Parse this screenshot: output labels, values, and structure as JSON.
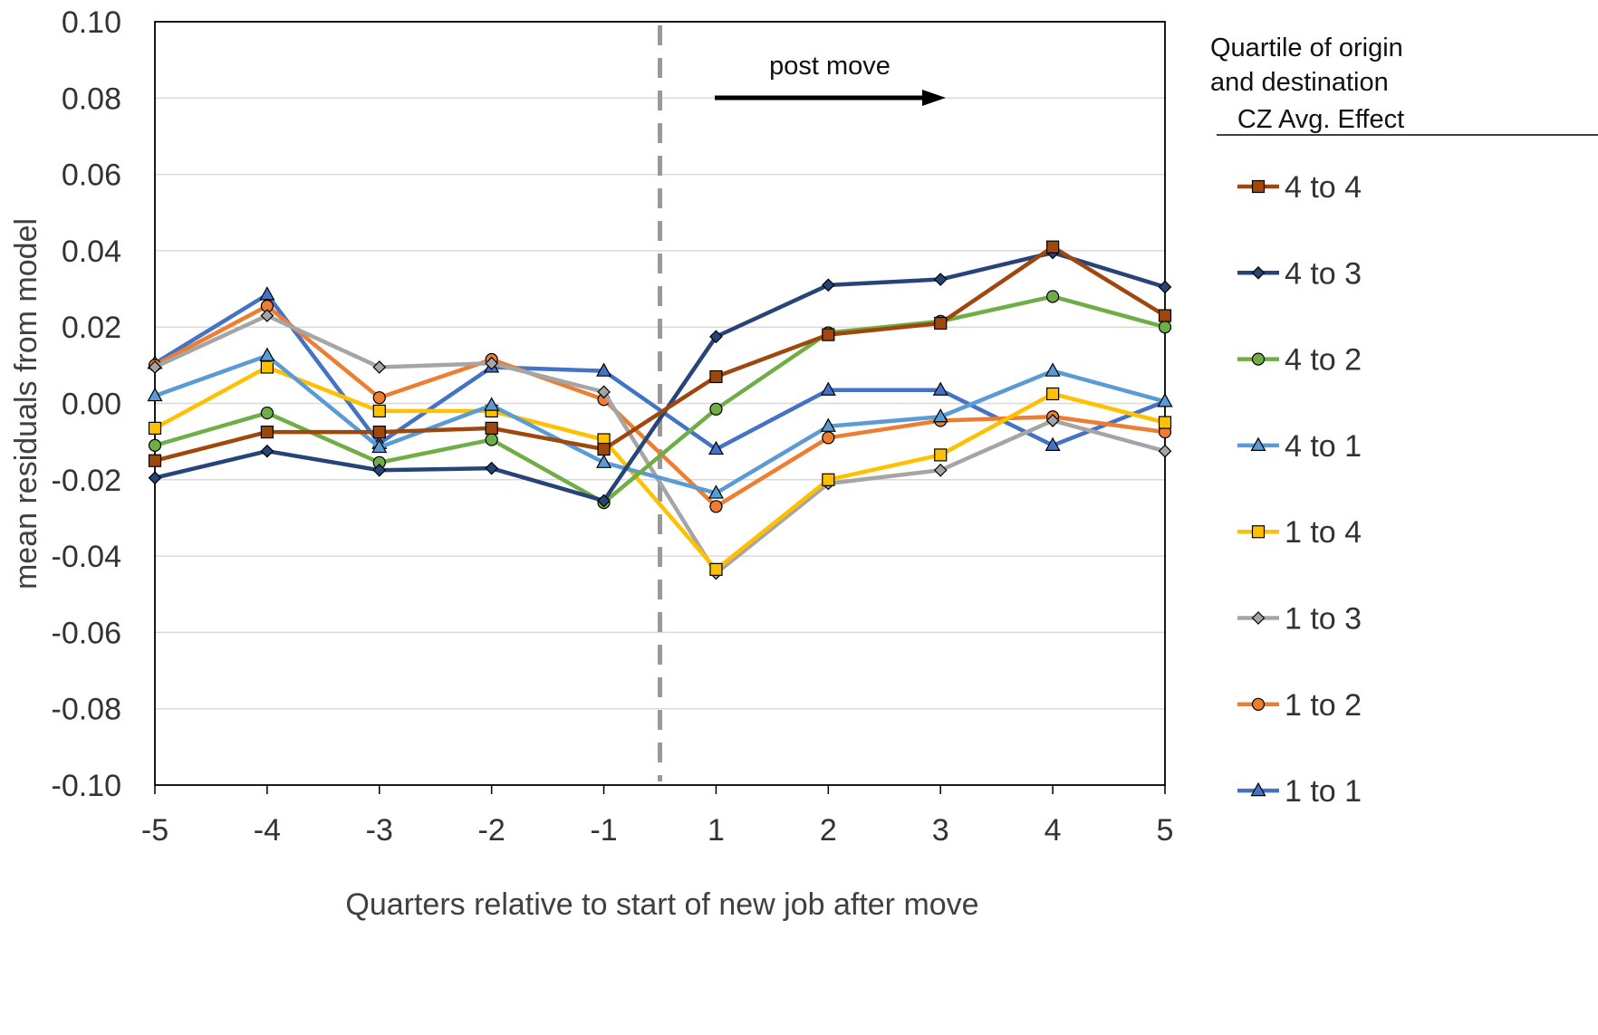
{
  "chart_data": {
    "type": "line",
    "xlabel": "Quarters relative to start of new job after move",
    "ylabel": "mean residuals from model",
    "categories": [
      "-5",
      "-4",
      "-3",
      "-2",
      "-1",
      "1",
      "2",
      "3",
      "4",
      "5"
    ],
    "ylim": [
      -0.1,
      0.1
    ],
    "y_ticks": [
      "0.10",
      "0.08",
      "0.06",
      "0.04",
      "0.02",
      "0.00",
      "-0.02",
      "-0.04",
      "-0.06",
      "-0.08",
      "-0.10"
    ],
    "y_tick_values": [
      0.1,
      0.08,
      0.06,
      0.04,
      0.02,
      0.0,
      -0.02,
      -0.04,
      -0.06,
      -0.08,
      -0.1
    ],
    "grid": true,
    "legend": {
      "title_lines": [
        "Quartile of origin",
        "and destination",
        "CZ Avg. Effect"
      ],
      "placement": "right"
    },
    "annotation": {
      "text": "post move",
      "arrow": "right"
    },
    "divider": {
      "style": "dashed",
      "between": [
        "-1",
        "1"
      ],
      "color": "#999999"
    },
    "series": [
      {
        "name": "4 to 4",
        "color": "#9E480E",
        "marker": "square",
        "values": [
          -0.015,
          -0.0075,
          -0.0075,
          -0.0065,
          -0.012,
          0.007,
          0.018,
          0.021,
          0.041,
          0.023
        ]
      },
      {
        "name": "4 to 3",
        "color": "#264478",
        "marker": "diamond",
        "values": [
          -0.0195,
          -0.0125,
          -0.0175,
          -0.017,
          -0.0255,
          0.0175,
          0.031,
          0.0325,
          0.0395,
          0.0305
        ]
      },
      {
        "name": "4 to 2",
        "color": "#70AD47",
        "marker": "circle",
        "values": [
          -0.011,
          -0.0025,
          -0.0155,
          -0.0095,
          -0.026,
          -0.0015,
          0.0185,
          0.0215,
          0.028,
          0.02
        ]
      },
      {
        "name": "4 to 1",
        "color": "#5B9BD5",
        "marker": "triangle",
        "values": [
          0.002,
          0.0125,
          -0.0115,
          -0.0005,
          -0.0155,
          -0.0235,
          -0.006,
          -0.0035,
          0.0085,
          0.0005
        ]
      },
      {
        "name": "1 to 4",
        "color": "#FFC000",
        "marker": "square",
        "values": [
          -0.0065,
          0.0095,
          -0.002,
          -0.002,
          -0.0095,
          -0.0435,
          -0.02,
          -0.0135,
          0.0025,
          -0.005
        ]
      },
      {
        "name": "1 to 3",
        "color": "#A5A5A5",
        "marker": "diamond",
        "values": [
          0.0095,
          0.023,
          0.0095,
          0.0105,
          0.003,
          -0.0445,
          -0.021,
          -0.0175,
          -0.0045,
          -0.0125
        ]
      },
      {
        "name": "1 to 2",
        "color": "#ED7D31",
        "marker": "circle",
        "values": [
          0.01,
          0.0255,
          0.0015,
          0.0115,
          0.001,
          -0.027,
          -0.009,
          -0.0045,
          -0.0035,
          -0.0075
        ]
      },
      {
        "name": "1 to 1",
        "color": "#4472C4",
        "marker": "triangle",
        "values": [
          0.0105,
          0.0285,
          -0.0105,
          0.0095,
          0.0085,
          -0.012,
          0.0035,
          0.0035,
          -0.011,
          0.0005
        ]
      }
    ]
  }
}
